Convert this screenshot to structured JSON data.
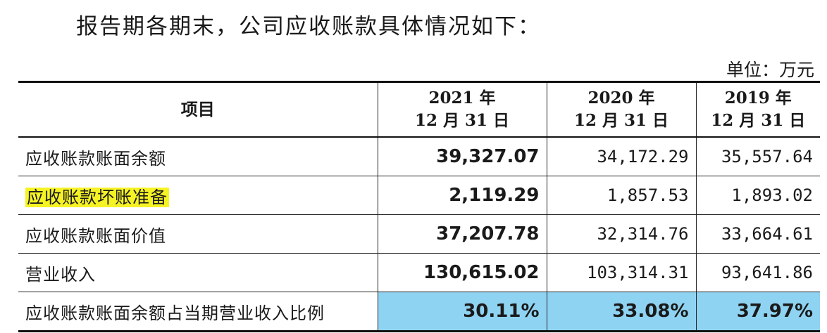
{
  "intro": "报告期各期末，公司应收账款具体情况如下：",
  "unit": "单位：万元",
  "table": {
    "headers": {
      "item": "项目",
      "col2021": {
        "line1": "2021 年",
        "line2": "12 月 31 日"
      },
      "col2020": {
        "line1": "2020 年",
        "line2": "12 月 31 日"
      },
      "col2019": {
        "line1": "2019 年",
        "line2": "12 月 31 日"
      }
    },
    "rows": [
      {
        "label": "应收账款账面余额",
        "v2021": "39,327.07",
        "v2020": "34,172.29",
        "v2019": "35,557.64"
      },
      {
        "label": "应收账款坏账准备",
        "v2021": "2,119.29",
        "v2020": "1,857.53",
        "v2019": "1,893.02"
      },
      {
        "label": "应收账款账面价值",
        "v2021": "37,207.78",
        "v2020": "32,314.76",
        "v2019": "33,664.61"
      },
      {
        "label": "营业收入",
        "v2021": "130,615.02",
        "v2020": "103,314.31",
        "v2019": "93,641.86"
      },
      {
        "label": "应收账款账面余额占当期营业收入比例",
        "v2021": "30.11%",
        "v2020": "33.08%",
        "v2019": "37.97%"
      }
    ]
  },
  "colors": {
    "highlight_yellow": "#f6f325",
    "highlight_blue": "#8fd3f2"
  }
}
